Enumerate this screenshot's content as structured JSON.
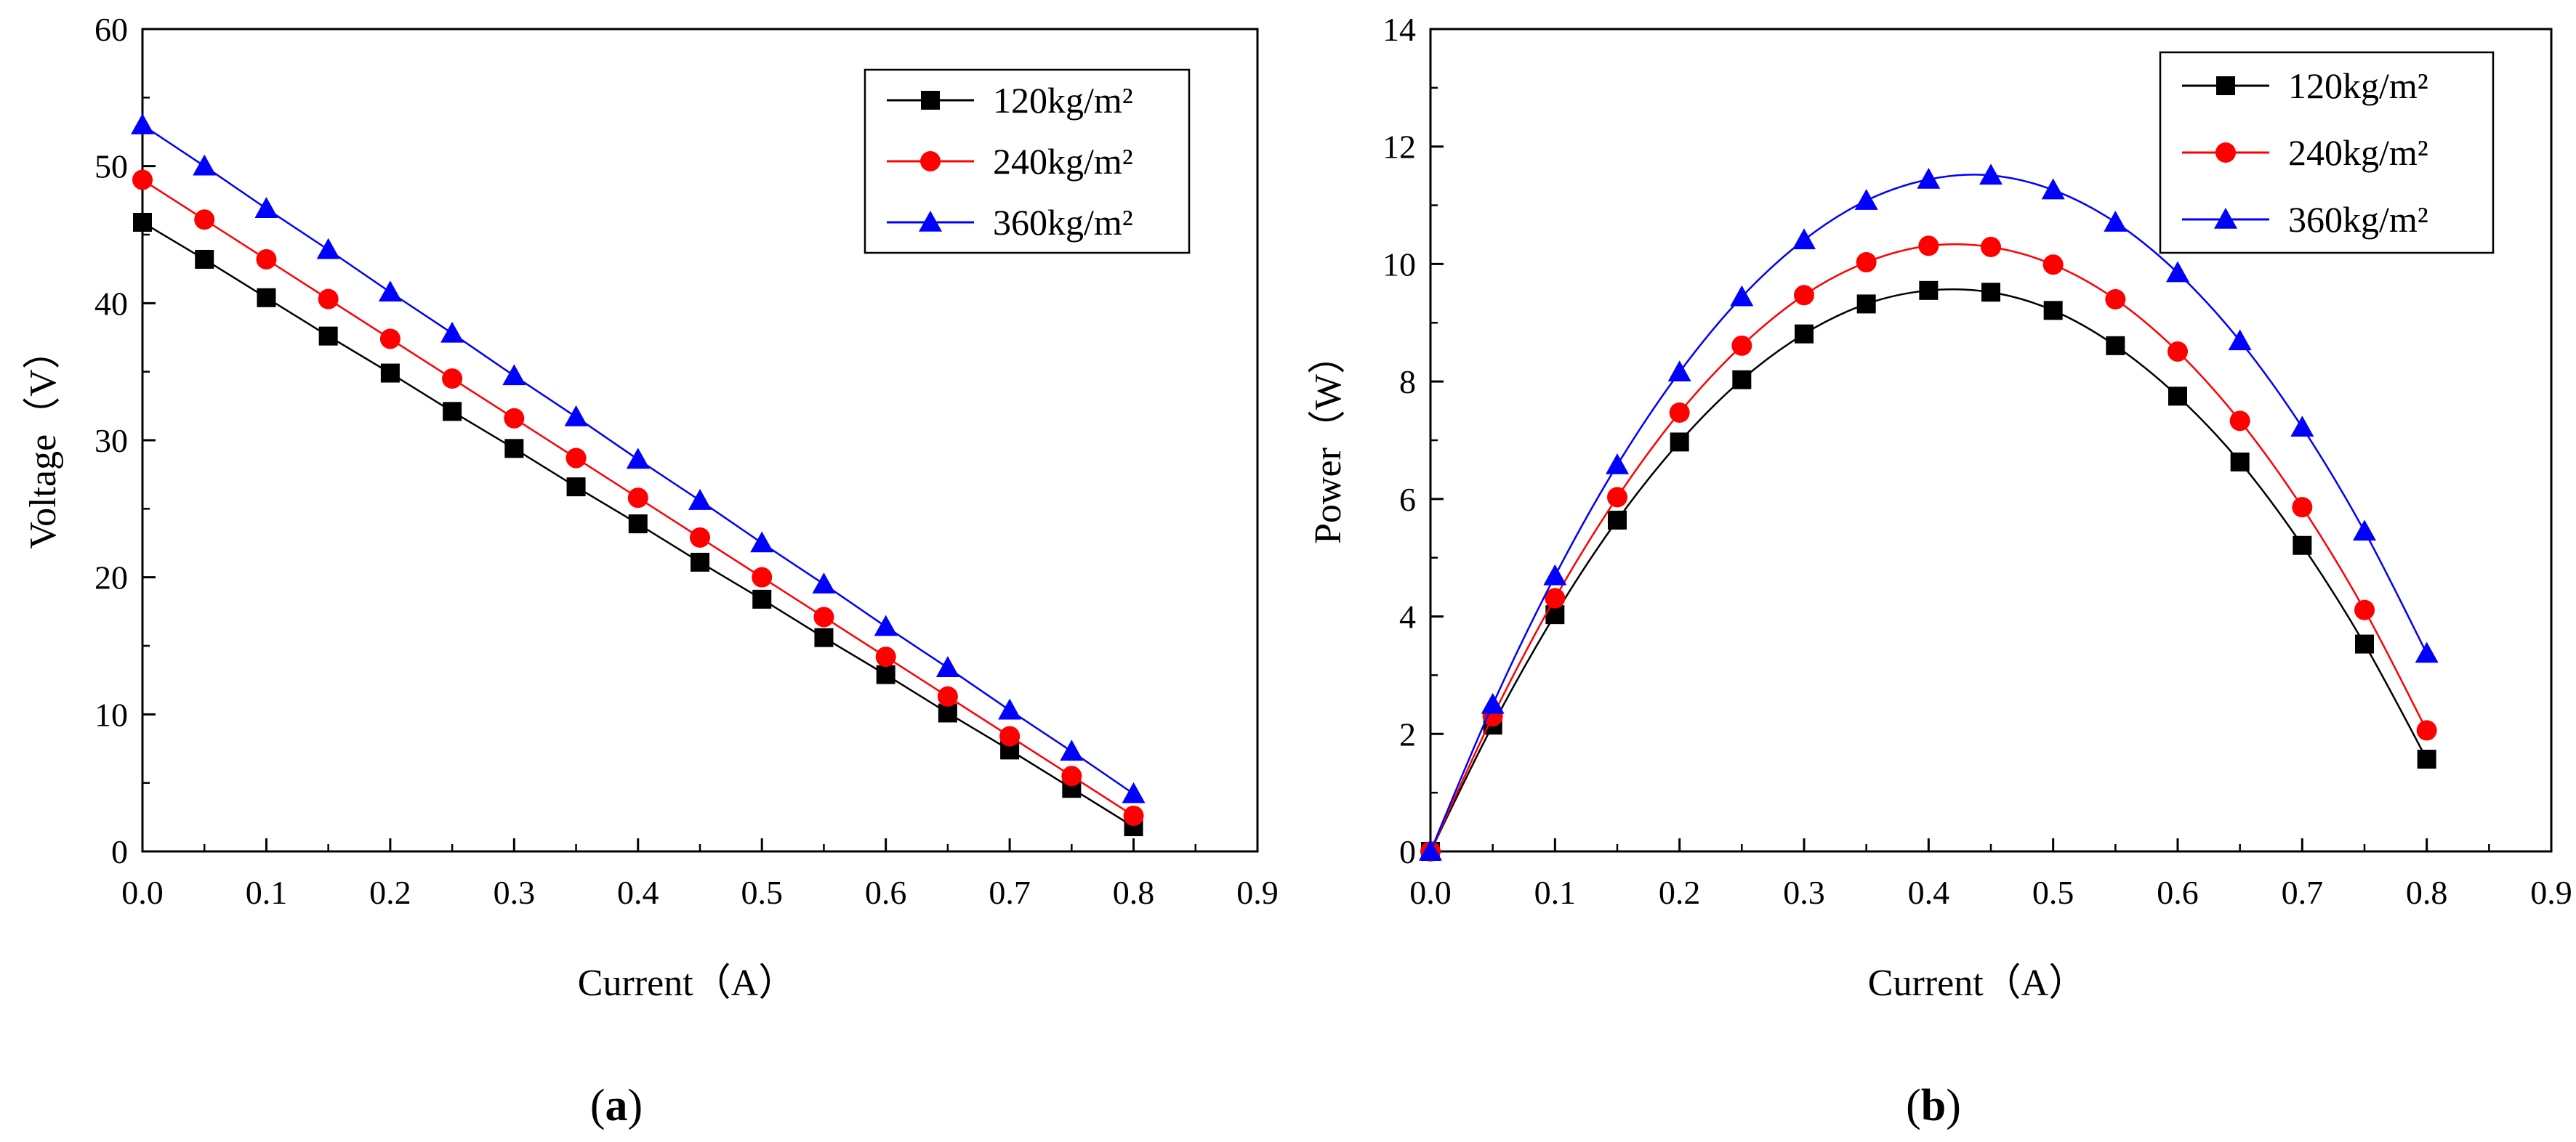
{
  "figure": {
    "panels": [
      {
        "label_open": "(",
        "label_letter": "a",
        "label_close": ")"
      },
      {
        "label_open": "(",
        "label_letter": "b",
        "label_close": ")"
      }
    ]
  },
  "chart_data": [
    {
      "type": "line",
      "panel": "a",
      "title": "",
      "xlabel": "Current（A）",
      "ylabel": "Voltage（V）",
      "xlim": [
        0,
        0.9
      ],
      "ylim": [
        0,
        60
      ],
      "xticks": [
        "0.0",
        "0.1",
        "0.2",
        "0.3",
        "0.4",
        "0.5",
        "0.6",
        "0.7",
        "0.8",
        "0.9"
      ],
      "yticks": [
        "0",
        "10",
        "20",
        "30",
        "40",
        "50",
        "60"
      ],
      "grid": false,
      "legend_position": "top-right",
      "x": [
        0.0,
        0.05,
        0.1,
        0.15,
        0.2,
        0.25,
        0.3,
        0.35,
        0.4,
        0.45,
        0.5,
        0.55,
        0.6,
        0.65,
        0.7,
        0.75,
        0.8
      ],
      "series": [
        {
          "name": "120kg/m²",
          "color": "#000000",
          "marker": "square",
          "values": [
            45.9,
            43.2,
            40.4,
            37.6,
            34.9,
            32.1,
            29.4,
            26.6,
            23.9,
            21.1,
            18.4,
            15.6,
            12.9,
            10.1,
            7.4,
            4.6,
            1.8
          ]
        },
        {
          "name": "240kg/m²",
          "color": "#ff0000",
          "marker": "circle",
          "values": [
            49.0,
            46.1,
            43.2,
            40.3,
            37.4,
            34.5,
            31.6,
            28.7,
            25.8,
            22.9,
            20.0,
            17.1,
            14.2,
            11.3,
            8.4,
            5.5,
            2.6
          ]
        },
        {
          "name": "360kg/m²",
          "color": "#0000ff",
          "marker": "triangle",
          "values": [
            53.0,
            50.0,
            46.9,
            43.9,
            40.8,
            37.8,
            34.7,
            31.7,
            28.6,
            25.6,
            22.5,
            19.5,
            16.4,
            13.4,
            10.3,
            7.3,
            4.2
          ]
        }
      ]
    },
    {
      "type": "line",
      "panel": "b",
      "title": "",
      "xlabel": "Current（A）",
      "ylabel": "Power（W）",
      "xlim": [
        0,
        0.9
      ],
      "ylim": [
        0,
        14
      ],
      "xticks": [
        "0.0",
        "0.1",
        "0.2",
        "0.3",
        "0.4",
        "0.5",
        "0.6",
        "0.7",
        "0.8",
        "0.9"
      ],
      "yticks": [
        "0",
        "2",
        "4",
        "6",
        "8",
        "10",
        "12",
        "14"
      ],
      "grid": false,
      "legend_position": "top-right",
      "x": [
        0.0,
        0.05,
        0.1,
        0.15,
        0.2,
        0.25,
        0.3,
        0.35,
        0.4,
        0.45,
        0.5,
        0.55,
        0.6,
        0.65,
        0.7,
        0.75,
        0.8
      ],
      "series": [
        {
          "name": "120kg/m²",
          "color": "#000000",
          "marker": "square",
          "values": [
            0,
            2.15,
            4.03,
            5.64,
            6.97,
            8.03,
            8.81,
            9.32,
            9.55,
            9.52,
            9.21,
            8.61,
            7.75,
            6.63,
            5.21,
            3.53,
            1.57
          ]
        },
        {
          "name": "240kg/m²",
          "color": "#ff0000",
          "marker": "circle",
          "values": [
            0,
            2.3,
            4.31,
            6.03,
            7.47,
            8.61,
            9.47,
            10.03,
            10.31,
            10.29,
            9.99,
            9.4,
            8.51,
            7.33,
            5.86,
            4.11,
            2.06
          ]
        },
        {
          "name": "360kg/m²",
          "color": "#0000ff",
          "marker": "triangle",
          "values": [
            0,
            2.5,
            4.69,
            6.58,
            8.16,
            9.44,
            10.41,
            11.08,
            11.44,
            11.51,
            11.26,
            10.71,
            9.85,
            8.69,
            7.22,
            5.45,
            3.37
          ]
        }
      ]
    }
  ]
}
